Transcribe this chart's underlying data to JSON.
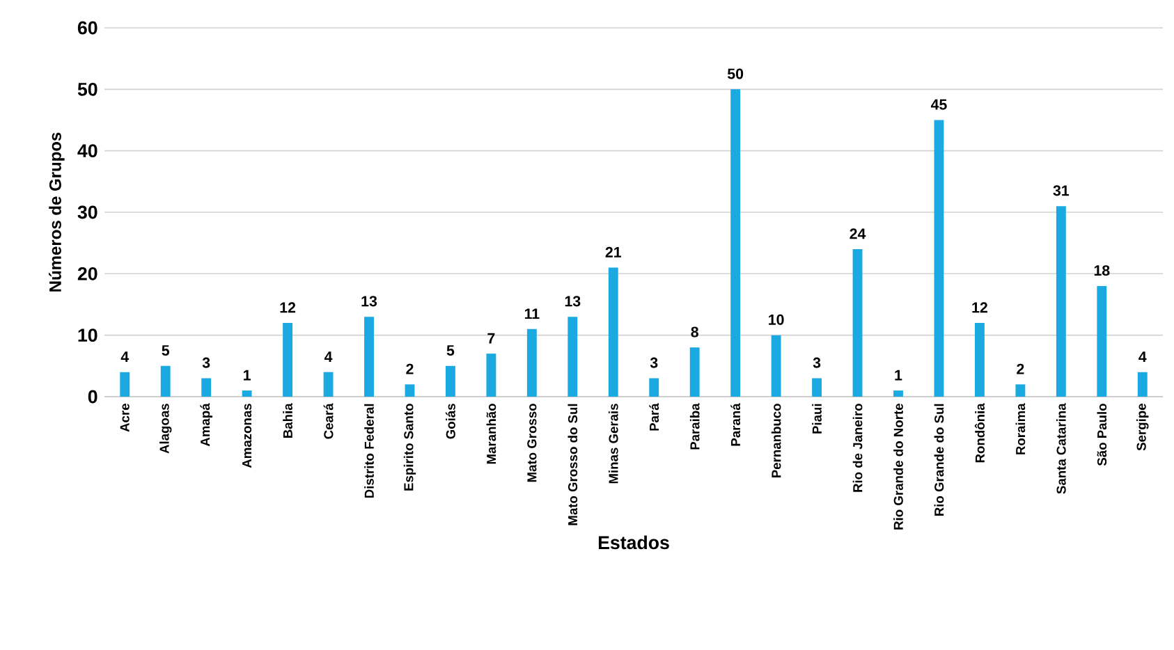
{
  "chart_data": {
    "type": "bar",
    "xlabel": "Estados",
    "ylabel": "Números de Grupos",
    "categories": [
      "Acre",
      "Alagoas",
      "Amapá",
      "Amazonas",
      "Bahia",
      "Ceará",
      "Distrito Federal",
      "Espirito Santo",
      "Goiás",
      "Maranhão",
      "Mato Grosso",
      "Mato Grosso do Sul",
      "Minas Gerais",
      "Pará",
      "Paraiba",
      "Paraná",
      "Pernanbuco",
      "Piaui",
      "Rio de Janeiro",
      "Rio Grande do Norte",
      "Rio Grande do Sul",
      "Rondônia",
      "Roraima",
      "Santa Catarina",
      "São Paulo",
      "Sergipe"
    ],
    "values": [
      4,
      5,
      3,
      1,
      12,
      4,
      13,
      2,
      5,
      7,
      11,
      13,
      21,
      3,
      8,
      50,
      10,
      3,
      24,
      1,
      45,
      12,
      2,
      31,
      18,
      4
    ],
    "color": "#1ba9e1",
    "ylim": [
      0,
      60
    ],
    "yticks": [
      0,
      10,
      20,
      30,
      40,
      50,
      60
    ],
    "grid": "y",
    "data_labels": true
  }
}
